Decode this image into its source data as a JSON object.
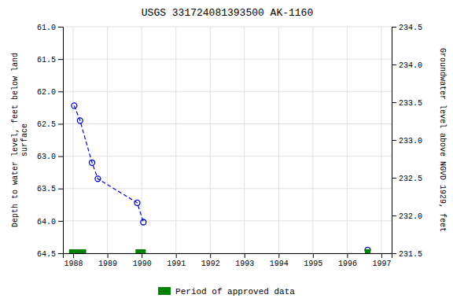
{
  "chart_data": {
    "type": "line",
    "title": "USGS 331724081393500 AK-1160",
    "ylabel": "Depth to water level, feet below land\n surface",
    "y2label": "Groundwater level above NGVD 1929, feet",
    "xlim": [
      1987.7,
      1997.3
    ],
    "xticks": [
      1988,
      1989,
      1990,
      1991,
      1992,
      1993,
      1994,
      1995,
      1996,
      1997
    ],
    "ylim": [
      64.5,
      61.0
    ],
    "yticks": [
      {
        "value": 61.0,
        "label": "61.0"
      },
      61.5,
      {
        "value": 62.0,
        "label": "62.0"
      },
      62.5,
      {
        "value": 63.0,
        "label": "63.0"
      },
      63.5,
      {
        "value": 64.0,
        "label": "64.0"
      },
      64.5
    ],
    "y2lim": [
      231.5,
      234.5
    ],
    "y2ticks": [
      231.5,
      {
        "value": 232.0,
        "label": "232.0"
      },
      232.5,
      {
        "value": 233.0,
        "label": "233.0"
      },
      233.5,
      {
        "value": 234.0,
        "label": "234.0"
      },
      234.5
    ],
    "grid": true,
    "legend": "bottom",
    "series": [
      {
        "type": "line",
        "color": "#0000cc",
        "line_style": "dashed",
        "marker": "circle",
        "x": [
          1988.03,
          1988.2,
          1988.55,
          1988.72,
          1989.87,
          1990.05
        ],
        "values": [
          62.22,
          62.45,
          63.1,
          63.35,
          63.72,
          64.02
        ]
      },
      {
        "type": "scatter",
        "color": "#0000cc",
        "marker": "circle",
        "x": [
          1996.6
        ],
        "values": [
          64.45
        ]
      },
      {
        "type": "bar",
        "name": "Period of approved data",
        "color": "#008000",
        "x_start": [
          1987.88,
          1989.82,
          1996.52
        ],
        "x_end": [
          1988.38,
          1990.12,
          1996.68
        ],
        "values": [
          64.5,
          64.5,
          64.5
        ]
      }
    ]
  }
}
